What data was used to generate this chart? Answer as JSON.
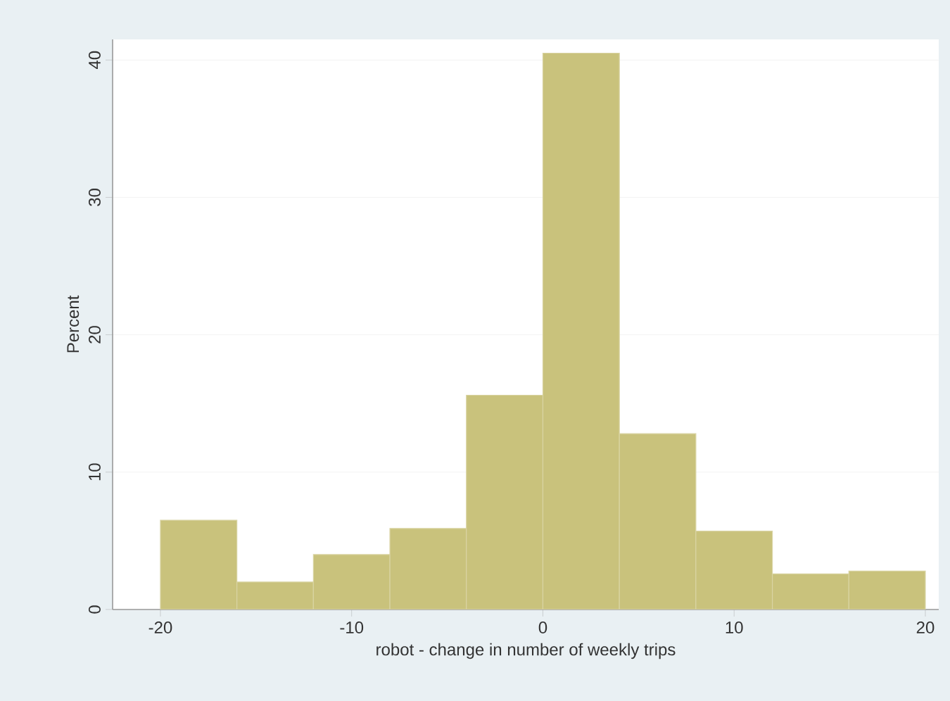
{
  "chart_data": {
    "type": "histogram",
    "xlabel": "robot - change in number of weekly trips",
    "ylabel": "Percent",
    "bins": [
      -20,
      -16,
      -12,
      -8,
      -4,
      0,
      4,
      8,
      12,
      16,
      20
    ],
    "values": [
      6.5,
      2.0,
      4.0,
      5.9,
      15.6,
      40.5,
      12.8,
      5.7,
      2.6,
      2.8
    ],
    "color": "#c9c27c",
    "xlim": [
      -22.5,
      20.7
    ],
    "ylim": [
      0,
      41.5
    ],
    "xticks": [
      -20,
      -10,
      0,
      10,
      20
    ],
    "yticks": [
      0,
      10,
      20,
      30,
      40
    ],
    "grid": "y"
  }
}
